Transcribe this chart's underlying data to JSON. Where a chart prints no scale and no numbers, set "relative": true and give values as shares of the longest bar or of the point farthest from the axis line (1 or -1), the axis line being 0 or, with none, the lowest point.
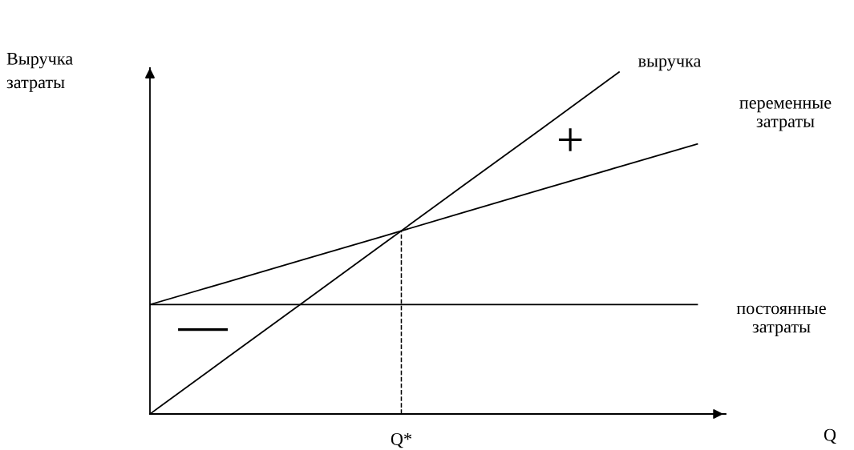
{
  "chart_data": {
    "type": "line",
    "relative": true,
    "ylabel": "Выручка\nзатраты",
    "categories": [
      null,
      null,
      null,
      null,
      null,
      null,
      null,
      null
    ],
    "series": [
      {
        "name": "выручка",
        "color": "#000000",
        "values": [
          0,
          0.167,
          0.333,
          0.5,
          0.667,
          0.833,
          1,
          null
        ]
      },
      {
        "name": "переменные\nзатраты",
        "color": "#000000",
        "values": [
          0.32,
          0.387,
          0.454,
          0.521,
          0.589,
          0.656,
          0.723,
          0.79
        ]
      },
      {
        "name": "постоянные\nзатраты",
        "color": "#000000",
        "values": [
          0.32,
          0.32,
          0.32,
          0.32,
          0.32,
          0.32,
          0.32,
          0.32
        ]
      }
    ],
    "annotations": [
      "Q*",
      "+",
      "—",
      "Q"
    ],
    "grid": false,
    "legend": false,
    "marker": "none",
    "line_style": "solid"
  }
}
